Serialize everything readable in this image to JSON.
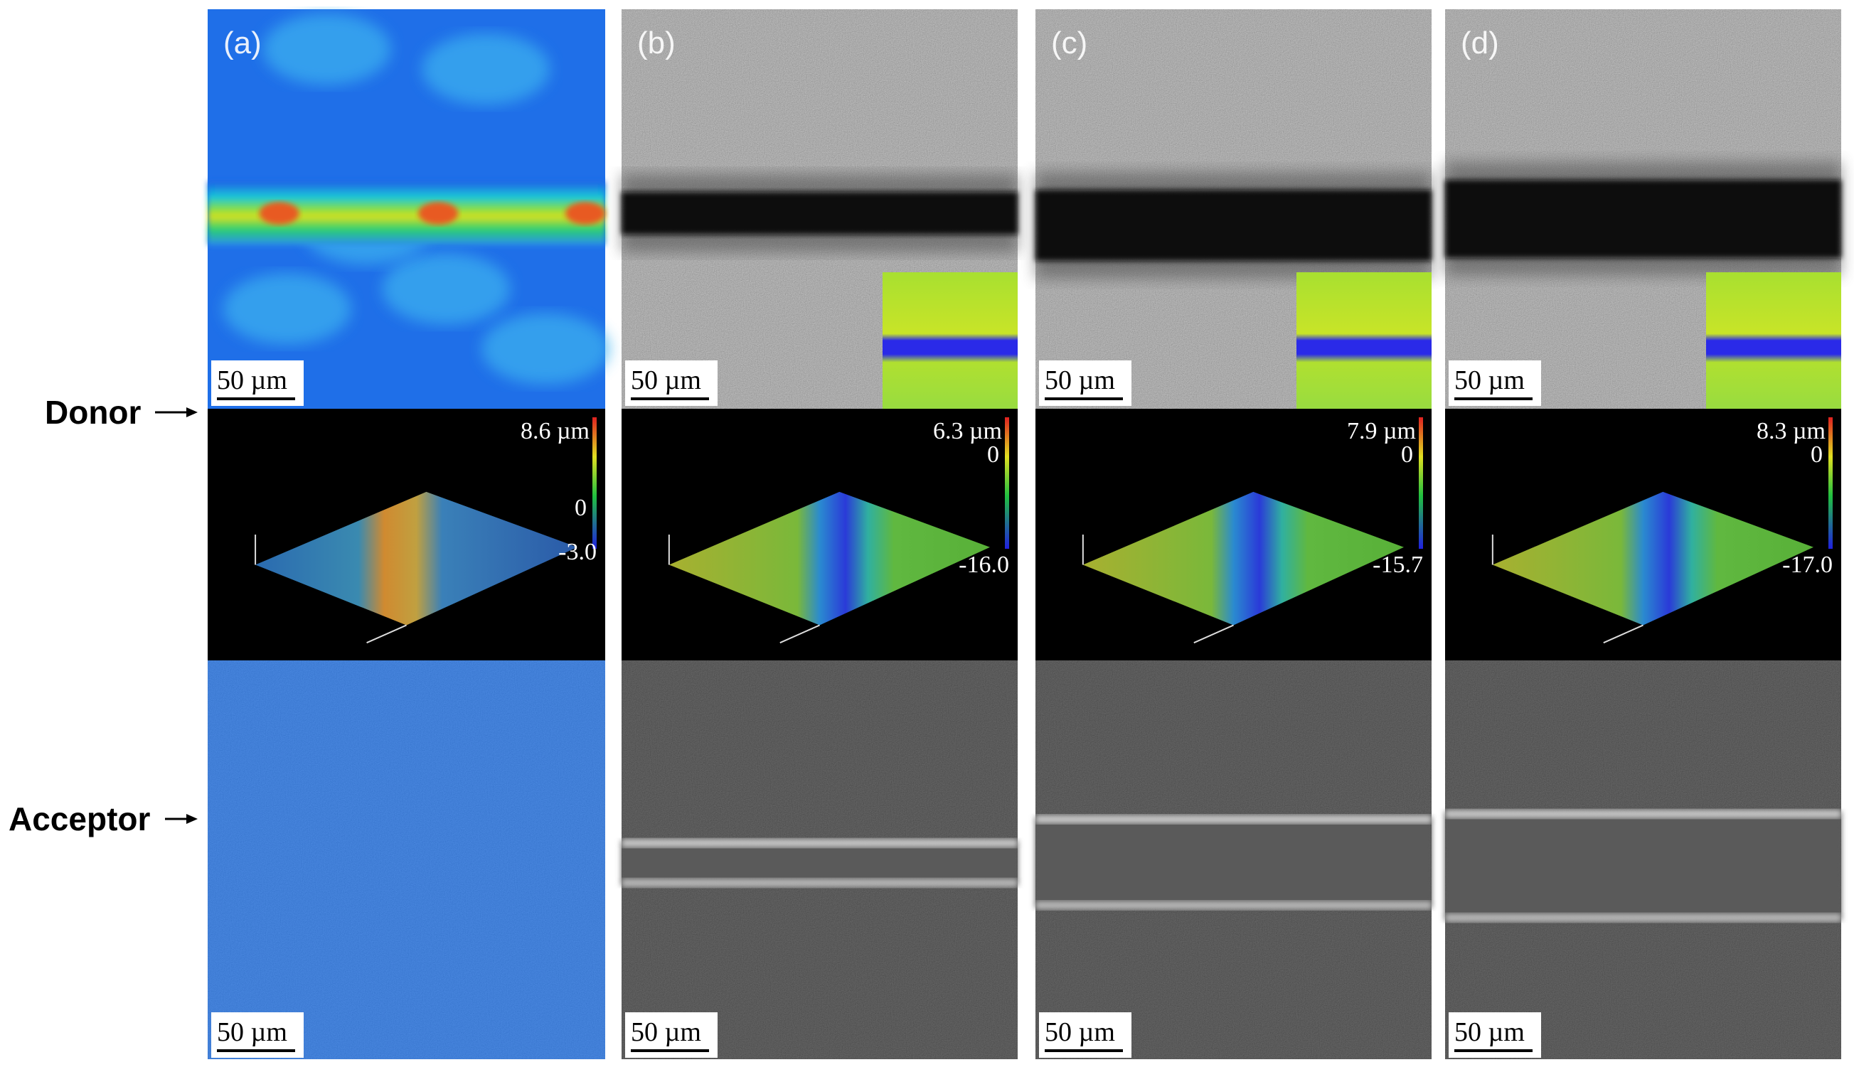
{
  "labels": {
    "donor": "Donor",
    "acceptor": "Acceptor"
  },
  "panels": [
    {
      "label": "(a)",
      "scale_top": "50 µm",
      "scale_bottom": "50 µm",
      "colorbar": {
        "max": "8.6 µm",
        "zero": "0",
        "min": "-3.0"
      }
    },
    {
      "label": "(b)",
      "scale_top": "50 µm",
      "scale_bottom": "50 µm",
      "colorbar": {
        "max": "6.3 µm",
        "zero": "0",
        "min": "-16.0"
      }
    },
    {
      "label": "(c)",
      "scale_top": "50 µm",
      "scale_bottom": "50 µm",
      "colorbar": {
        "max": "7.9 µm",
        "zero": "0",
        "min": "-15.7"
      }
    },
    {
      "label": "(d)",
      "scale_top": "50 µm",
      "scale_bottom": "50 µm",
      "colorbar": {
        "max": "8.3 µm",
        "zero": "0",
        "min": "-17.0"
      }
    }
  ]
}
